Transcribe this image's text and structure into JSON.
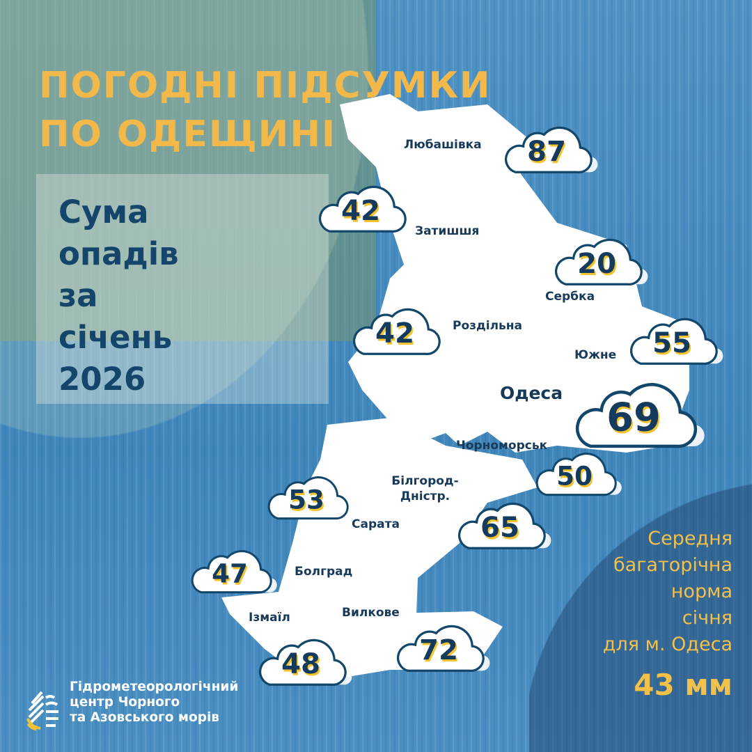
{
  "title": [
    "ПОГОДНІ ПІДСУМКИ",
    "ПО ОДЕЩИНІ"
  ],
  "subtitle": [
    "Сума",
    "опадів",
    "за",
    "січень",
    "2026"
  ],
  "stations": [
    {
      "name": "Любашівка",
      "value": "87"
    },
    {
      "name": "Затишшя",
      "value": "42"
    },
    {
      "name": "Сербка",
      "value": "20"
    },
    {
      "name": "Роздільна",
      "value": "42"
    },
    {
      "name": "Южне",
      "value": "55"
    },
    {
      "name": "Одеса",
      "value": "69"
    },
    {
      "name": "Чорноморськ",
      "value": "50"
    },
    {
      "name": "Сарата",
      "value": "53"
    },
    {
      "name": "Білгород-Дністр.",
      "value": "65"
    },
    {
      "name": "Болград",
      "value": "47"
    },
    {
      "name": "Ізмаїл",
      "value": "48"
    },
    {
      "name": "Вилкове",
      "value": "72"
    }
  ],
  "norm": {
    "lines": [
      "Середня",
      "багаторічна",
      "норма",
      "січня",
      "для м. Одеса"
    ],
    "value": "43 мм"
  },
  "organization": [
    "Гідрометеорологічний",
    "центр Чорного",
    "та Азовського морів"
  ],
  "colors": {
    "title": "#f3b84a",
    "text": "#15456b",
    "cloud_stroke": "#12466b",
    "number_shadow": "#f4c430"
  }
}
